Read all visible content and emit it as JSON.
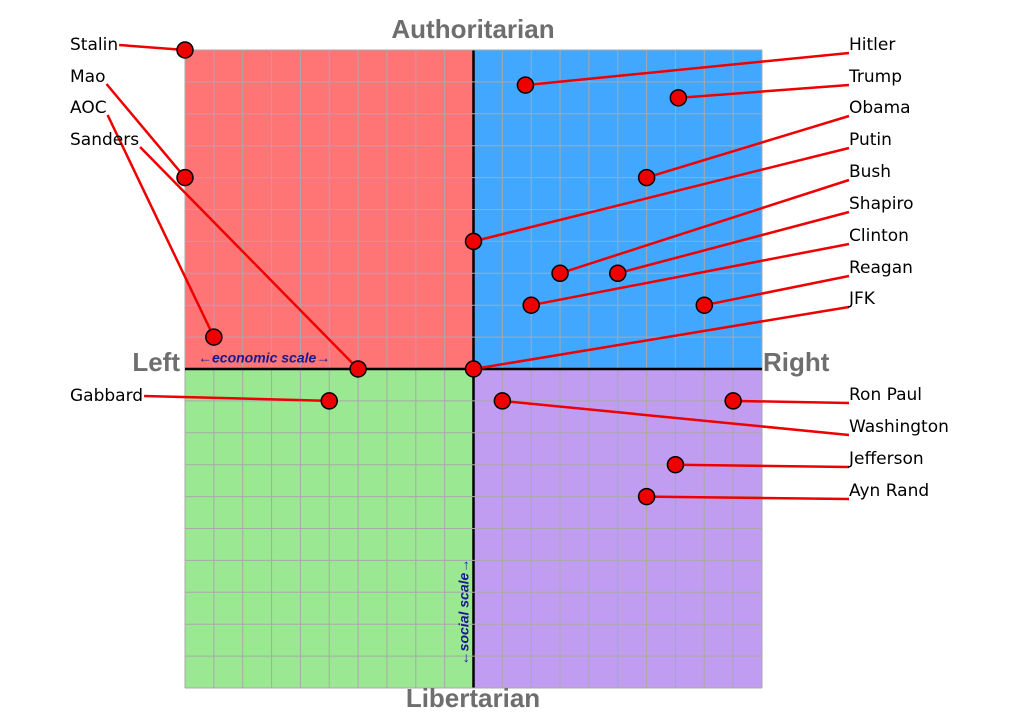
{
  "chart_data": {
    "type": "scatter",
    "axis_labels": {
      "top": "Authoritarian",
      "bottom": "Libertarian",
      "left": "Left",
      "right": "Right"
    },
    "scale_labels": {
      "x": "←economic scale→",
      "y": "←social scale→"
    },
    "xlim": [
      -10,
      10
    ],
    "ylim": [
      -10,
      10
    ],
    "xticks": [
      -10,
      -9,
      -8,
      -7,
      -6,
      -5,
      -4,
      -3,
      -2,
      -1,
      0,
      1,
      2,
      3,
      4,
      5,
      6,
      7,
      8,
      9,
      10
    ],
    "yticks": [
      -10,
      -9,
      -8,
      -7,
      -6,
      -5,
      -4,
      -3,
      -2,
      -1,
      0,
      1,
      2,
      3,
      4,
      5,
      6,
      7,
      8,
      9,
      10
    ],
    "grid": true,
    "quadrant_colors": {
      "top_left": "#ff7575",
      "top_right": "#42a7ff",
      "bottom_left": "#9ae892",
      "bottom_right": "#c09df0"
    },
    "point_color": "#ee0000",
    "leader_color": "#ee0000",
    "points": [
      {
        "name": "Stalin",
        "x": -10,
        "y": 10
      },
      {
        "name": "Mao",
        "x": -10,
        "y": 6
      },
      {
        "name": "AOC",
        "x": -9,
        "y": 1
      },
      {
        "name": "Sanders",
        "x": -4,
        "y": 0
      },
      {
        "name": "Gabbard",
        "x": -5,
        "y": -1
      },
      {
        "name": "Hitler",
        "x": 1.8,
        "y": 8.9
      },
      {
        "name": "Trump",
        "x": 7.1,
        "y": 8.5
      },
      {
        "name": "Obama",
        "x": 6,
        "y": 6
      },
      {
        "name": "Putin",
        "x": 0,
        "y": 4
      },
      {
        "name": "Bush",
        "x": 3,
        "y": 3
      },
      {
        "name": "Shapiro",
        "x": 5,
        "y": 3
      },
      {
        "name": "Clinton",
        "x": 2,
        "y": 2
      },
      {
        "name": "Reagan",
        "x": 8,
        "y": 2
      },
      {
        "name": "JFK",
        "x": 0,
        "y": 0
      },
      {
        "name": "Ron Paul",
        "x": 9,
        "y": -1
      },
      {
        "name": "Washington",
        "x": 1,
        "y": -1
      },
      {
        "name": "Jefferson",
        "x": 7,
        "y": -3
      },
      {
        "name": "Ayn Rand",
        "x": 6,
        "y": -4
      }
    ]
  }
}
